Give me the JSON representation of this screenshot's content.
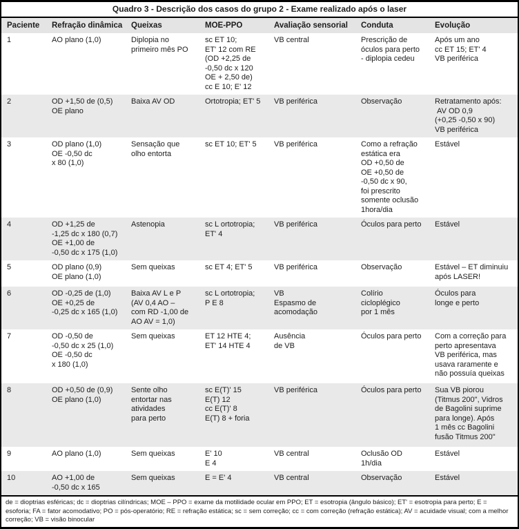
{
  "title": "Quadro 3 - Descrição dos casos do grupo 2 - Exame realizado após o laser",
  "columns": [
    "Paciente",
    "Refração dinâmica",
    "Queixas",
    "MOE-PPO",
    "Avaliação sensorial",
    "Conduta",
    "Evolução"
  ],
  "rows": [
    {
      "paciente": "1",
      "refracao_dinamica": "AO plano (1,0)",
      "queixas": "Diplopia no\nprimeiro mês PO",
      "moe_ppo": "sc ET 10;\nET' 12 com RE\n(OD +2,25 de\n-0,50 dc x 120\nOE + 2,50 de)\ncc E 10;  E' 12",
      "avaliacao_sensorial": "VB central",
      "conduta": "Prescrição de\nóculos para perto\n- diplopia cedeu",
      "evolucao": "Após um ano\ncc ET 15; ET' 4\nVB periférica"
    },
    {
      "paciente": "2",
      "refracao_dinamica": "OD +1,50 de (0,5)\nOE plano",
      "queixas": "Baixa AV OD",
      "moe_ppo": "Ortotropia; ET' 5",
      "avaliacao_sensorial": "VB periférica",
      "conduta": "Observação",
      "evolucao": "Retratamento após:\n AV OD 0,9\n(+0,25 -0,50 x 90)\nVB periférica"
    },
    {
      "paciente": "3",
      "refracao_dinamica": "OD plano (1,0)\nOE -0,50 dc\nx 80 (1,0)",
      "queixas": "Sensação que\nolho entorta",
      "moe_ppo": "sc ET 10; ET' 5",
      "avaliacao_sensorial": "VB periférica",
      "conduta": "Como a refração\nestática era\nOD +0,50 de\nOE +0,50 de\n-0,50 dc x 90,\nfoi prescrito\nsomente oclusão\n1hora/dia",
      "evolucao": "Estável"
    },
    {
      "paciente": "4",
      "refracao_dinamica": "OD +1,25 de\n-1,25 dc x 180 (0,7)\nOE +1,00 de\n-0,50 dc x 175 (1,0)",
      "queixas": "Astenopia",
      "moe_ppo": "sc L ortotropia;\nET' 4",
      "avaliacao_sensorial": "VB periférica",
      "conduta": "Óculos para perto",
      "evolucao": "Estável"
    },
    {
      "paciente": "5",
      "refracao_dinamica": "OD plano (0,9)\nOE plano (1,0)",
      "queixas": "Sem queixas",
      "moe_ppo": "sc ET 4; ET' 5",
      "avaliacao_sensorial": "VB periférica",
      "conduta": "Observação",
      "evolucao": "Estável – ET diminuiu\napós LASER!"
    },
    {
      "paciente": "6",
      "refracao_dinamica": "OD -0,25 de (1,0)\nOE +0,25 de\n-0,25 dc x 165 (1,0)",
      "queixas": "Baixa AV L e P\n(AV 0,4 AO –\ncom RD -1,00 de\nAO AV = 1,0)",
      "moe_ppo": "sc L ortotropia;\nP E 8",
      "avaliacao_sensorial": "VB\nEspasmo de\nacomodação",
      "conduta": "Colírio\ncicloplégico\npor 1 mês",
      "evolucao": "Óculos para\nlonge e perto"
    },
    {
      "paciente": "7",
      "refracao_dinamica": "OD -0,50 de\n-0,50 dc x 25 (1,0)\nOE -0,50 dc\nx 180 (1,0)",
      "queixas": "Sem queixas",
      "moe_ppo": "ET 12 HTE 4;\nET' 14 HTE 4",
      "avaliacao_sensorial": "Ausência\nde VB",
      "conduta": "Óculos para perto",
      "evolucao": "Com a correção para\nperto apresentava\nVB periférica, mas\nusava raramente e\nnão possuía queixas"
    },
    {
      "paciente": "8",
      "refracao_dinamica": "OD +0,50 de (0,9)\nOE plano (1,0)",
      "queixas": "Sente olho\nentortar nas\natividades\npara perto",
      "moe_ppo": "sc E(T)' 15\nE(T) 12\ncc E(T)' 8\nE(T) 8 + foria",
      "avaliacao_sensorial": "VB periférica",
      "conduta": "Óculos para perto",
      "evolucao": "Sua VB piorou\n(Titmus 200\", Vidros\nde Bagolini suprime\npara longe). Após\n1 mês cc Bagolini\nfusão Titmus 200\""
    },
    {
      "paciente": "9",
      "refracao_dinamica": "AO plano (1,0)",
      "queixas": "Sem queixas",
      "moe_ppo": "E' 10\nE 4",
      "avaliacao_sensorial": "VB central",
      "conduta": "Oclusão OD\n1h/dia",
      "evolucao": "Estável"
    },
    {
      "paciente": "10",
      "refracao_dinamica": "AO +1,00 de\n-0,50 dc x 165",
      "queixas": "Sem queixas",
      "moe_ppo": "E = E' 4",
      "avaliacao_sensorial": "VB central",
      "conduta": "Observação",
      "evolucao": "Estável"
    }
  ],
  "footnote": "de = dioptrias esféricas; dc = dioptrias cilíndricas; MOE – PPO = exame da motilidade ocular em PPO; ET = esotropia (ângulo básico); ET' = esotropia para perto; E = esoforia; FA = fator acomodativo; PO = pós-operatório; RE = refração estática; sc = sem correção; cc =  com correção (refração estática); AV = acuidade visual; com a melhor correção; VB = visão binocular",
  "colors": {
    "stripe": "#e9e9e9",
    "header_bg": "#e4e4e4",
    "border": "#000000",
    "text": "#1c1c1c"
  }
}
